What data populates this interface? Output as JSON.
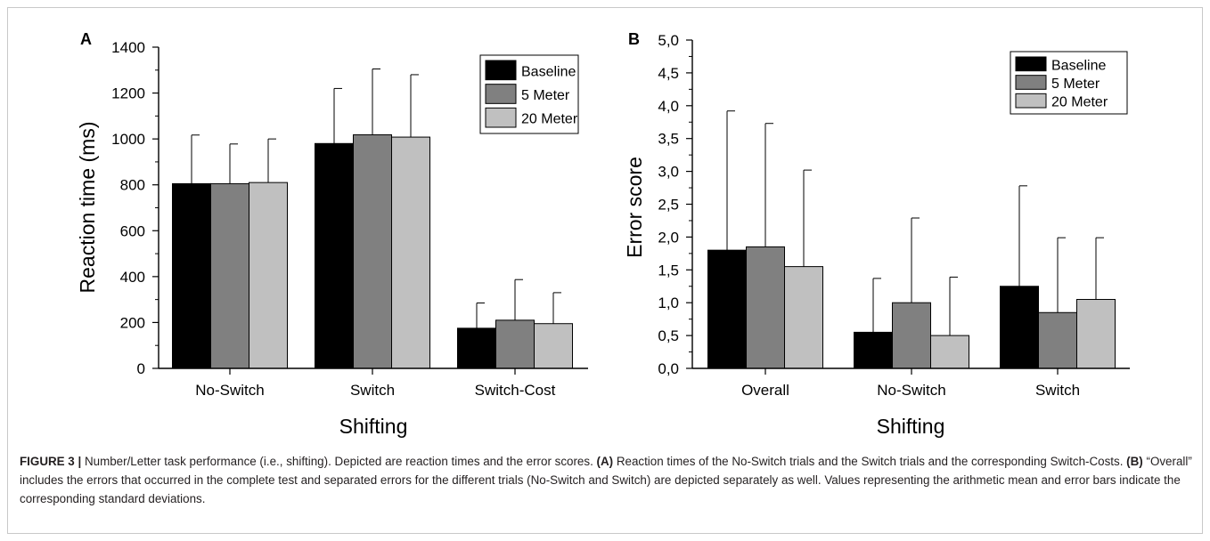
{
  "chart_data": [
    {
      "type": "bar",
      "panel_label": "A",
      "xlabel": "Shifting",
      "ylabel": "Reaction time (ms)",
      "ylim": [
        0,
        1400
      ],
      "yticks": [
        "0",
        "200",
        "400",
        "600",
        "800",
        "1000",
        "1200",
        "1400"
      ],
      "categories": [
        "No-Switch",
        "Switch",
        "Switch-Cost"
      ],
      "series": [
        {
          "name": "Baseline",
          "color": "#000000",
          "values": [
            805,
            980,
            175
          ],
          "errors": [
            212,
            240,
            110
          ]
        },
        {
          "name": "5 Meter",
          "color": "#808080",
          "values": [
            805,
            1018,
            210
          ],
          "errors": [
            173,
            287,
            177
          ]
        },
        {
          "name": "20 Meter",
          "color": "#c0c0c0",
          "values": [
            810,
            1008,
            195
          ],
          "errors": [
            190,
            272,
            135
          ]
        }
      ],
      "legend_position": "top-right",
      "grid": false
    },
    {
      "type": "bar",
      "panel_label": "B",
      "xlabel": "Shifting",
      "ylabel": "Error score",
      "ylim": [
        0,
        5
      ],
      "yticks": [
        "0,0",
        "0,5",
        "1,0",
        "1,5",
        "2,0",
        "2,5",
        "3,0",
        "3,5",
        "4,0",
        "4,5",
        "5,0"
      ],
      "categories": [
        "Overall",
        "No-Switch",
        "Switch"
      ],
      "series": [
        {
          "name": "Baseline",
          "color": "#000000",
          "values": [
            1.8,
            0.55,
            1.25
          ],
          "errors": [
            2.12,
            0.82,
            1.53
          ]
        },
        {
          "name": "5 Meter",
          "color": "#808080",
          "values": [
            1.85,
            1.0,
            0.85
          ],
          "errors": [
            1.88,
            1.29,
            1.14
          ]
        },
        {
          "name": "20 Meter",
          "color": "#c0c0c0",
          "values": [
            1.55,
            0.5,
            1.05
          ],
          "errors": [
            1.47,
            0.89,
            0.94
          ]
        }
      ],
      "legend_position": "top-right",
      "grid": false
    }
  ],
  "caption": {
    "label": "FIGURE 3 |",
    "text1": " Number/Letter task performance (i.e., shifting). Depicted are reaction times and the error scores. ",
    "label_a": "(A)",
    "text2": " Reaction times of the No-Switch trials and the Switch trials and the corresponding Switch-Costs. ",
    "label_b": "(B)",
    "text3": " “Overall” includes the errors that occurred in the complete test and separated errors for the different trials (No-Switch and Switch) are depicted separately as well. Values representing the arithmetic mean and error bars indicate the corresponding standard deviations."
  }
}
